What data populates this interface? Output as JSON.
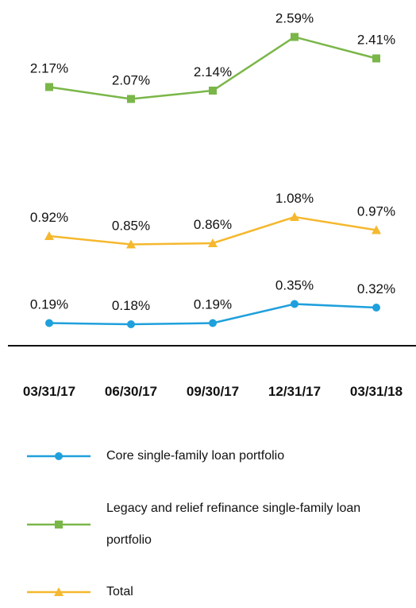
{
  "chart_data": {
    "type": "line",
    "categories": [
      "03/31/17",
      "06/30/17",
      "09/30/17",
      "12/31/17",
      "03/31/18"
    ],
    "ylim": [
      0,
      2.9
    ],
    "series": [
      {
        "name": "Core single-family loan portfolio",
        "color": "#1fa0dc",
        "marker": "circle",
        "values": [
          0.19,
          0.18,
          0.19,
          0.35,
          0.32
        ],
        "value_labels": [
          "0.19%",
          "0.18%",
          "0.19%",
          "0.35%",
          "0.32%"
        ]
      },
      {
        "name": "Legacy and relief refinance single-family loan portfolio",
        "color": "#7ab648",
        "marker": "square",
        "values": [
          2.17,
          2.07,
          2.14,
          2.59,
          2.41
        ],
        "value_labels": [
          "2.17%",
          "2.07%",
          "2.14%",
          "2.59%",
          "2.41%"
        ]
      },
      {
        "name": "Total",
        "color": "#f5b82e",
        "marker": "triangle",
        "values": [
          0.92,
          0.85,
          0.86,
          1.08,
          0.97
        ],
        "value_labels": [
          "0.92%",
          "0.85%",
          "0.86%",
          "1.08%",
          "0.97%"
        ]
      }
    ]
  }
}
